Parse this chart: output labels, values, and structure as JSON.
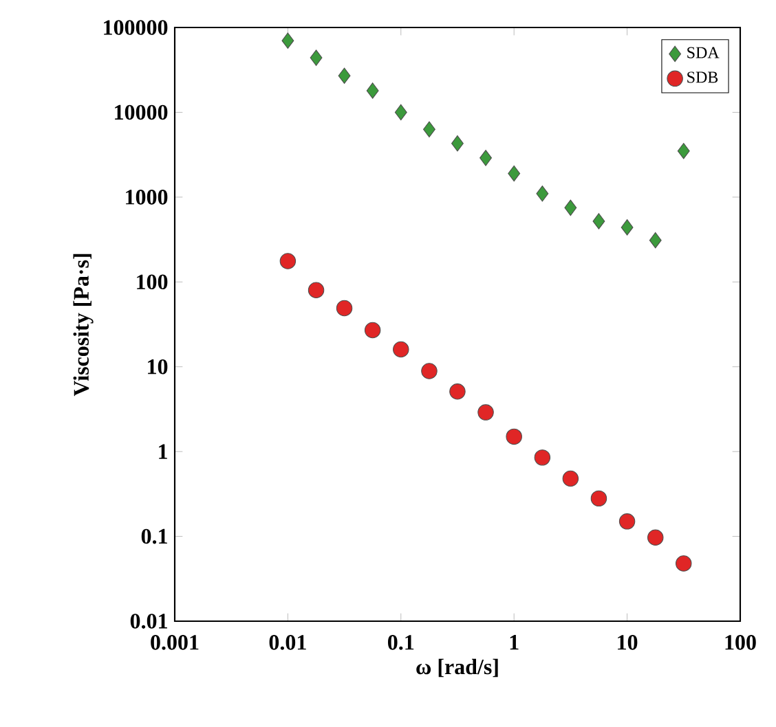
{
  "chart_data": {
    "type": "scatter",
    "xlabel": "ω [rad/s]",
    "ylabel": "Viscosity [Pa·s]",
    "log": "xy",
    "x": [
      0.01,
      0.0178,
      0.0316,
      0.0562,
      0.1,
      0.178,
      0.316,
      0.562,
      1,
      1.78,
      3.16,
      5.62,
      10,
      17.8,
      31.6
    ],
    "series": [
      {
        "name": "SDA",
        "color": "#3c9a3c",
        "marker": "diamond",
        "values": [
          70000,
          44000,
          27000,
          18000,
          10000,
          6300,
          4300,
          2900,
          1900,
          1100,
          750,
          520,
          440,
          310,
          3500
        ]
      },
      {
        "name": "SDB",
        "color": "#e02626",
        "marker": "circle",
        "values": [
          176,
          80,
          49,
          27,
          16,
          8.9,
          5.1,
          2.9,
          1.5,
          0.85,
          0.48,
          0.28,
          0.15,
          0.097,
          0.048
        ]
      }
    ],
    "xlim": [
      0.001,
      100
    ],
    "ylim": [
      0.01,
      100000
    ],
    "xticks": [
      0.001,
      0.01,
      0.1,
      1,
      10,
      100
    ],
    "yticks": [
      0.01,
      0.1,
      1,
      10,
      100,
      1000,
      10000,
      100000
    ],
    "legend": "top right",
    "grid": false
  }
}
